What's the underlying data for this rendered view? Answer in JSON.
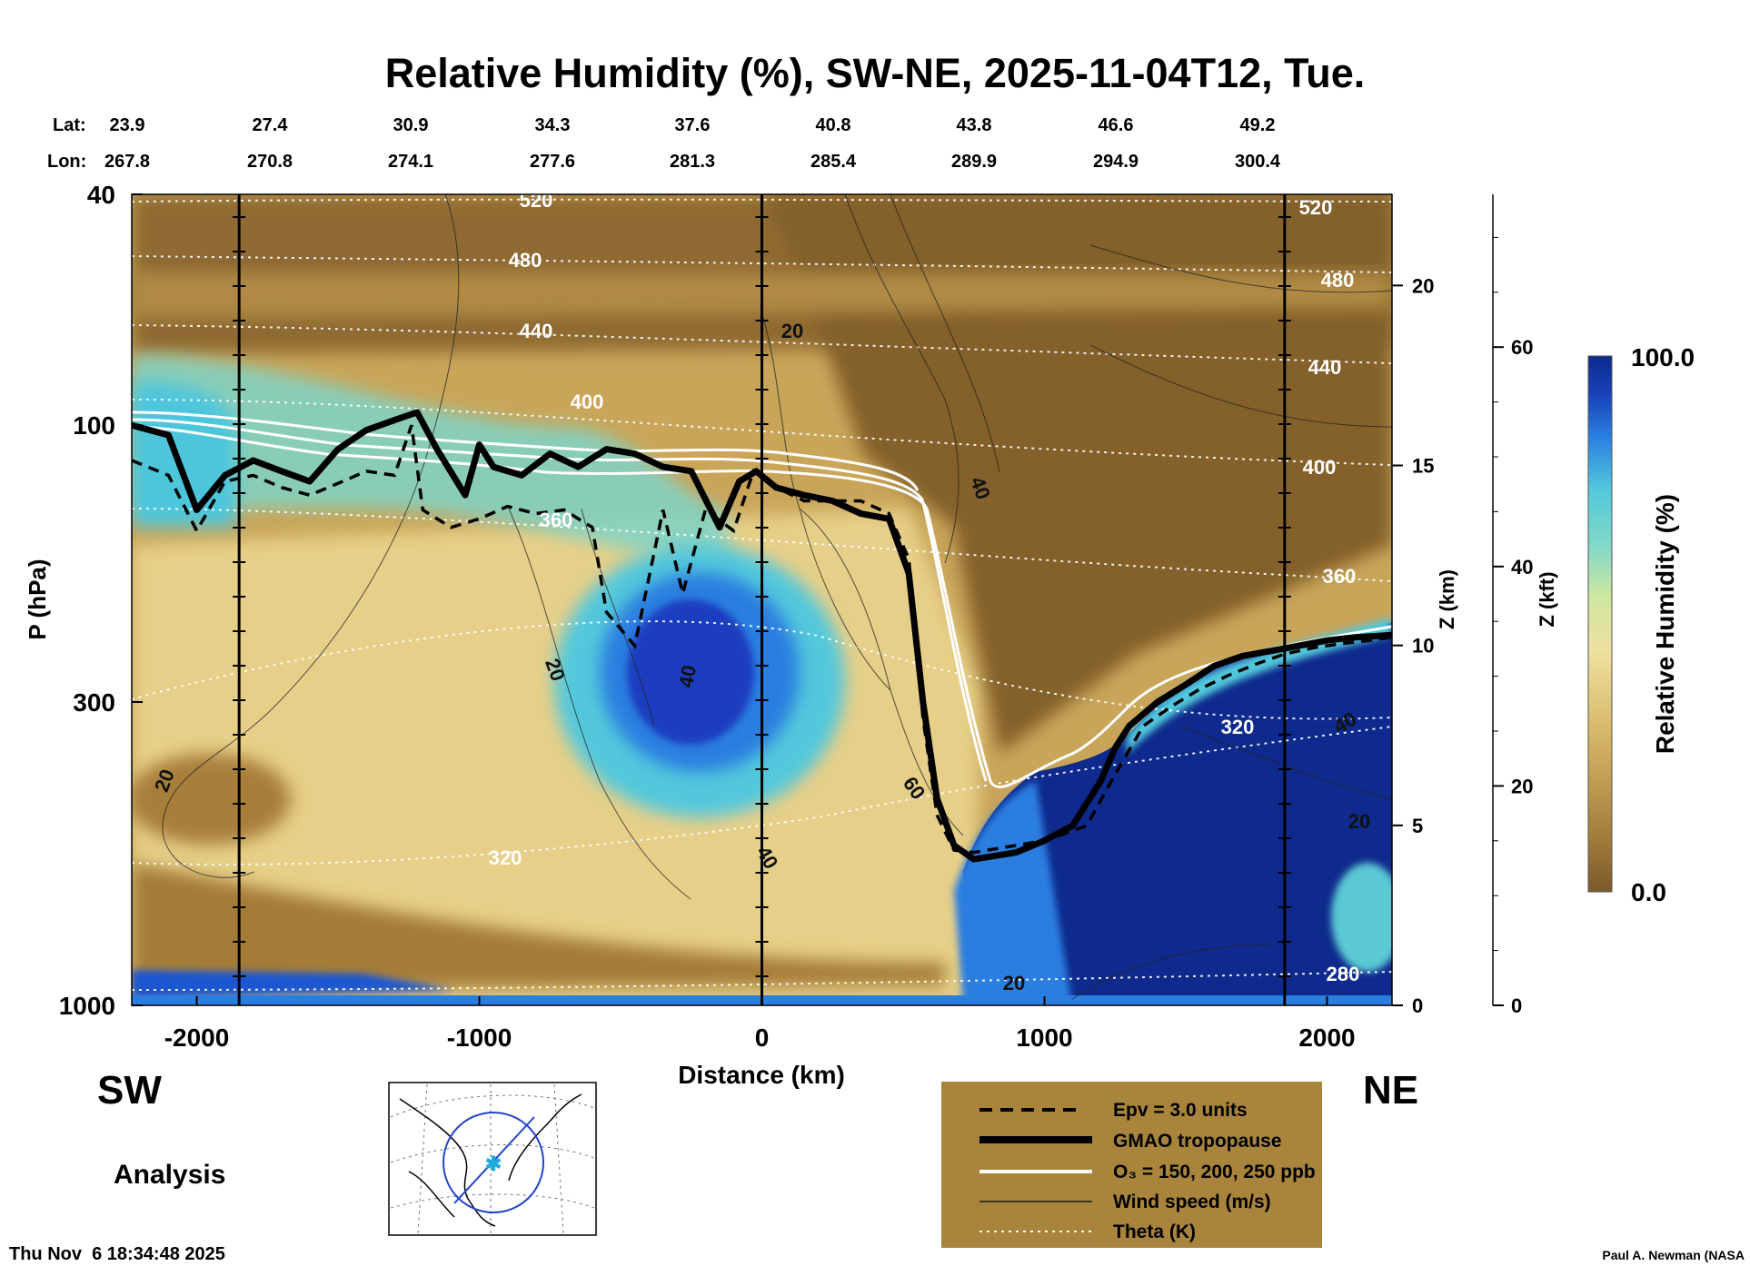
{
  "title": "Relative Humidity (%), SW-NE, 2025-11-04T12, Tue.",
  "header_lat_label": "Lat:",
  "header_lon_label": "Lon:",
  "lat": [
    "23.9",
    "27.4",
    "30.9",
    "34.3",
    "37.6",
    "40.8",
    "43.8",
    "46.6",
    "49.2"
  ],
  "lon": [
    "267.8",
    "270.8",
    "274.1",
    "277.6",
    "281.3",
    "285.4",
    "289.9",
    "294.9",
    "300.4"
  ],
  "left_corner": "SW",
  "right_corner": "NE",
  "analysis_label": "Analysis",
  "timestamp": "Thu Nov  6 18:34:48 2025",
  "credit": "Paul A. Newman (NASA",
  "legend": {
    "epv": "Epv = 3.0 units",
    "tropopause": "GMAO tropopause",
    "ozone": "O₃ = 150, 200, 250 ppb",
    "wind": "Wind speed (m/s)",
    "theta": "Theta (K)"
  },
  "colors": {
    "dry_dark": "#7b5a2a",
    "dry": "#a8823f",
    "mid": "#d8b86a",
    "light": "#efe0a0",
    "cyan": "#52c8dc",
    "blue": "#2a5ed0",
    "wet": "#0c2a8a",
    "legend_bg": "#a8843c"
  },
  "chart_data": {
    "type": "heatmap",
    "xlabel": "Distance (km)",
    "ylabel": "P (hPa)",
    "right_axis1_label": "Z (km)",
    "right_axis2_label": "Z (kft)",
    "colorbar_label": "Relative Humidity (%)",
    "colorbar_range": [
      0.0,
      100.0
    ],
    "colorbar_ticks": [
      "100.0",
      "0.0"
    ],
    "xlim": [
      -2230,
      2230
    ],
    "ylim_hPa": [
      1000,
      40
    ],
    "x_ticks": [
      -2000,
      -1000,
      0,
      1000,
      2000
    ],
    "x_tick_labels": [
      "-2000",
      "-1000",
      "0",
      "1000",
      "2000"
    ],
    "y_ticks": [
      40,
      100,
      300,
      1000
    ],
    "y_tick_labels": [
      "40",
      "100",
      "300",
      "1000"
    ],
    "z_km_ticks": [
      0,
      5,
      10,
      15,
      20
    ],
    "z_kft_ticks": [
      0,
      20,
      40,
      60
    ],
    "vertical_lines_km": [
      -1850,
      0,
      1850
    ],
    "tropopause": {
      "x": [
        -2230,
        -2100,
        -2000,
        -1900,
        -1800,
        -1700,
        -1600,
        -1500,
        -1400,
        -1300,
        -1220,
        -1150,
        -1050,
        -1000,
        -950,
        -850,
        -750,
        -650,
        -550,
        -450,
        -350,
        -250,
        -150,
        -80,
        -20,
        50,
        150,
        250,
        350,
        450,
        520,
        570,
        620,
        680,
        750,
        800,
        900,
        1000,
        1100,
        1200,
        1250,
        1300,
        1400,
        1500,
        1600,
        1700,
        1800,
        1900,
        2000,
        2100,
        2230
      ],
      "p": [
        100,
        104,
        140,
        122,
        115,
        120,
        125,
        110,
        102,
        98,
        95,
        110,
        132,
        108,
        118,
        122,
        112,
        118,
        110,
        112,
        118,
        120,
        150,
        125,
        120,
        128,
        132,
        135,
        142,
        145,
        180,
        300,
        440,
        530,
        560,
        555,
        545,
        520,
        490,
        410,
        360,
        330,
        300,
        280,
        260,
        250,
        245,
        240,
        235,
        232,
        230
      ]
    },
    "epv_3pvu": {
      "x": [
        -2230,
        -2100,
        -2000,
        -1900,
        -1800,
        -1700,
        -1600,
        -1500,
        -1400,
        -1300,
        -1240,
        -1200,
        -1100,
        -1000,
        -900,
        -800,
        -700,
        -600,
        -550,
        -450,
        -350,
        -280,
        -200,
        -100,
        -30,
        50,
        150,
        250,
        350,
        450,
        520,
        570,
        620,
        680,
        750,
        850,
        950,
        1050,
        1150,
        1250,
        1350,
        1450,
        1550,
        1650,
        1750,
        1850,
        1950,
        2050,
        2150,
        2230
      ],
      "p": [
        115,
        122,
        152,
        125,
        122,
        128,
        132,
        126,
        120,
        122,
        100,
        140,
        150,
        145,
        138,
        142,
        140,
        150,
        210,
        240,
        140,
        195,
        140,
        152,
        120,
        128,
        135,
        135,
        135,
        142,
        170,
        320,
        470,
        540,
        545,
        535,
        525,
        510,
        490,
        400,
        330,
        305,
        285,
        270,
        258,
        248,
        242,
        238,
        235,
        232
      ]
    },
    "theta_K": [
      280,
      320,
      360,
      400,
      440,
      480,
      520
    ],
    "wind_speed_ms": [
      20,
      40,
      60
    ],
    "ozone_ppb": [
      150,
      200,
      250
    ]
  }
}
